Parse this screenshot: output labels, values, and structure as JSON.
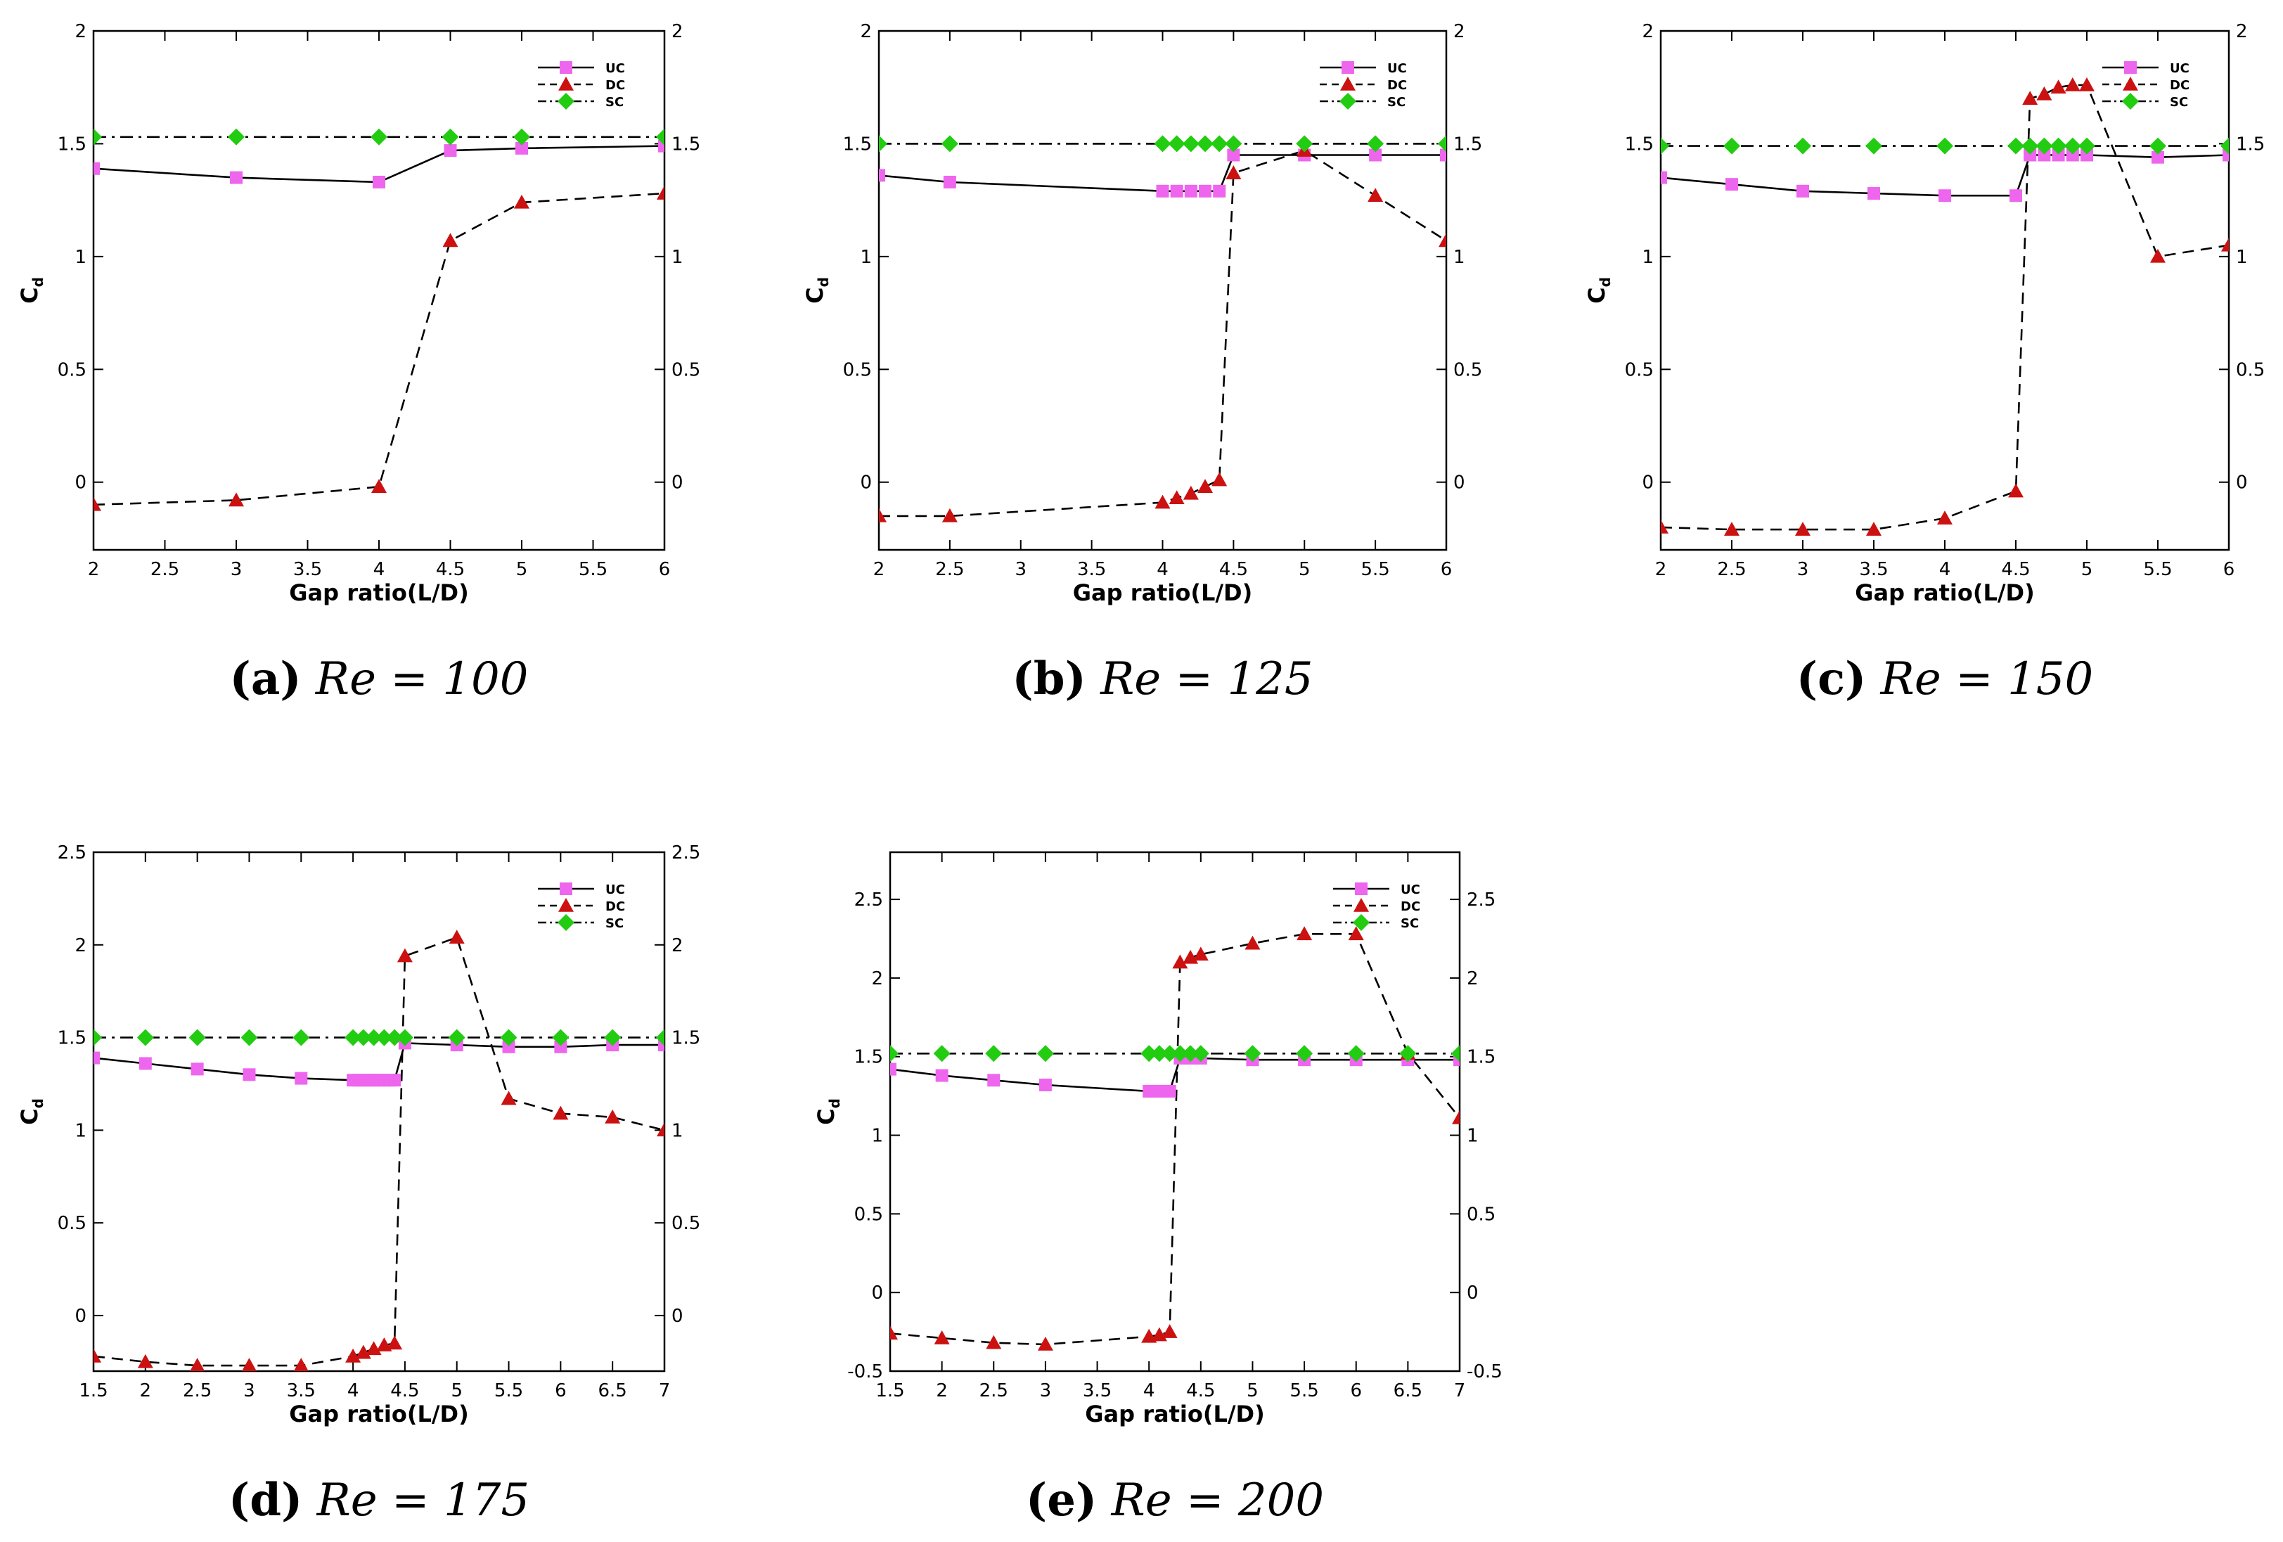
{
  "figure": {
    "colors": {
      "uc": "#ee66ee",
      "dc": "#cc1111",
      "sc": "#22cc11",
      "line": "#000000"
    }
  },
  "chart_data": [
    {
      "type": "line",
      "caption": {
        "letter": "(a)",
        "text": " Re = 100"
      },
      "xlabel": "Gap ratio(L/D)",
      "ylabel": "C",
      "ylabel_sub": "d",
      "xlim": [
        2,
        6
      ],
      "ylim": [
        -0.3,
        2
      ],
      "xticks": [
        2,
        2.5,
        3,
        3.5,
        4,
        4.5,
        5,
        5.5,
        6
      ],
      "xtick_labels": [
        "2",
        "2.5",
        "3",
        "3.5",
        "4",
        "4.5",
        "5",
        "5.5",
        "6"
      ],
      "yticks": [
        0,
        0.5,
        1,
        1.5,
        2
      ],
      "ytick_labels": [
        "0",
        "0.5",
        "1",
        "1.5",
        "2"
      ],
      "series": [
        {
          "name": "UC",
          "x": [
            2,
            3,
            4,
            4.5,
            5,
            6
          ],
          "y": [
            1.39,
            1.35,
            1.33,
            1.47,
            1.48,
            1.49
          ]
        },
        {
          "name": "DC",
          "x": [
            2,
            3,
            4,
            4.5,
            5,
            6
          ],
          "y": [
            -0.1,
            -0.08,
            -0.02,
            1.07,
            1.24,
            1.28
          ]
        },
        {
          "name": "SC",
          "x": [
            2,
            3,
            4,
            4.5,
            5,
            6
          ],
          "y": [
            1.53,
            1.53,
            1.53,
            1.53,
            1.53,
            1.53
          ]
        }
      ]
    },
    {
      "type": "line",
      "caption": {
        "letter": "(b)",
        "text": " Re = 125"
      },
      "xlabel": "Gap ratio(L/D)",
      "ylabel": "C",
      "ylabel_sub": "d",
      "xlim": [
        2,
        6
      ],
      "ylim": [
        -0.3,
        2
      ],
      "xticks": [
        2,
        2.5,
        3,
        3.5,
        4,
        4.5,
        5,
        5.5,
        6
      ],
      "xtick_labels": [
        "2",
        "2.5",
        "3",
        "3.5",
        "4",
        "4.5",
        "5",
        "5.5",
        "6"
      ],
      "yticks": [
        0,
        0.5,
        1,
        1.5,
        2
      ],
      "ytick_labels": [
        "0",
        "0.5",
        "1",
        "1.5",
        "2"
      ],
      "series": [
        {
          "name": "UC",
          "x": [
            2,
            2.5,
            4,
            4.1,
            4.2,
            4.3,
            4.4,
            4.5,
            5,
            5.5,
            6
          ],
          "y": [
            1.36,
            1.33,
            1.29,
            1.29,
            1.29,
            1.29,
            1.29,
            1.45,
            1.45,
            1.45,
            1.45
          ]
        },
        {
          "name": "DC",
          "x": [
            2,
            2.5,
            4,
            4.1,
            4.2,
            4.3,
            4.4,
            4.5,
            5,
            5.5,
            6
          ],
          "y": [
            -0.15,
            -0.15,
            -0.09,
            -0.07,
            -0.05,
            -0.02,
            0.01,
            1.37,
            1.47,
            1.27,
            1.07
          ]
        },
        {
          "name": "SC",
          "x": [
            2,
            2.5,
            4,
            4.1,
            4.2,
            4.3,
            4.4,
            4.5,
            5,
            5.5,
            6
          ],
          "y": [
            1.5,
            1.5,
            1.5,
            1.5,
            1.5,
            1.5,
            1.5,
            1.5,
            1.5,
            1.5,
            1.5
          ]
        }
      ]
    },
    {
      "type": "line",
      "caption": {
        "letter": "(c)",
        "text": " Re = 150"
      },
      "xlabel": "Gap ratio(L/D)",
      "ylabel": "C",
      "ylabel_sub": "d",
      "xlim": [
        2,
        6
      ],
      "ylim": [
        -0.3,
        2
      ],
      "xticks": [
        2,
        2.5,
        3,
        3.5,
        4,
        4.5,
        5,
        5.5,
        6
      ],
      "xtick_labels": [
        "2",
        "2.5",
        "3",
        "3.5",
        "4",
        "4.5",
        "5",
        "5.5",
        "6"
      ],
      "yticks": [
        0,
        0.5,
        1,
        1.5,
        2
      ],
      "ytick_labels": [
        "0",
        "0.5",
        "1",
        "1.5",
        "2"
      ],
      "series": [
        {
          "name": "UC",
          "x": [
            2,
            2.5,
            3,
            3.5,
            4,
            4.5,
            4.6,
            4.7,
            4.8,
            4.9,
            5,
            5.5,
            6
          ],
          "y": [
            1.35,
            1.32,
            1.29,
            1.28,
            1.27,
            1.27,
            1.45,
            1.45,
            1.45,
            1.45,
            1.45,
            1.44,
            1.45
          ]
        },
        {
          "name": "DC",
          "x": [
            2,
            2.5,
            3,
            3.5,
            4,
            4.5,
            4.6,
            4.7,
            4.8,
            4.9,
            5,
            5.5,
            6
          ],
          "y": [
            -0.2,
            -0.21,
            -0.21,
            -0.21,
            -0.16,
            -0.04,
            1.7,
            1.72,
            1.75,
            1.76,
            1.76,
            1.0,
            1.05
          ]
        },
        {
          "name": "SC",
          "x": [
            2,
            2.5,
            3,
            3.5,
            4,
            4.5,
            4.6,
            4.7,
            4.8,
            4.9,
            5,
            5.5,
            6
          ],
          "y": [
            1.49,
            1.49,
            1.49,
            1.49,
            1.49,
            1.49,
            1.49,
            1.49,
            1.49,
            1.49,
            1.49,
            1.49,
            1.49
          ]
        }
      ]
    },
    {
      "type": "line",
      "caption": {
        "letter": "(d)",
        "text": " Re = 175"
      },
      "xlabel": "Gap ratio(L/D)",
      "ylabel": "C",
      "ylabel_sub": "d",
      "xlim": [
        1.5,
        7
      ],
      "ylim": [
        -0.3,
        2.5
      ],
      "xticks": [
        1.5,
        2,
        2.5,
        3,
        3.5,
        4,
        4.5,
        5,
        5.5,
        6,
        6.5,
        7
      ],
      "xtick_labels": [
        "1.5",
        "2",
        "2.5",
        "3",
        "3.5",
        "4",
        "4.5",
        "5",
        "5.5",
        "6",
        "6.5",
        "7"
      ],
      "yticks": [
        0,
        0.5,
        1,
        1.5,
        2,
        2.5
      ],
      "ytick_labels": [
        "0",
        "0.5",
        "1",
        "1.5",
        "2",
        "2.5"
      ],
      "series": [
        {
          "name": "UC",
          "x": [
            1.5,
            2,
            2.5,
            3,
            3.5,
            4,
            4.05,
            4.1,
            4.15,
            4.2,
            4.25,
            4.3,
            4.35,
            4.4,
            4.5,
            5,
            5.5,
            6,
            6.5,
            7
          ],
          "y": [
            1.39,
            1.36,
            1.33,
            1.3,
            1.28,
            1.27,
            1.27,
            1.27,
            1.27,
            1.27,
            1.27,
            1.27,
            1.27,
            1.27,
            1.47,
            1.46,
            1.45,
            1.45,
            1.46,
            1.46
          ]
        },
        {
          "name": "DC",
          "x": [
            1.5,
            2,
            2.5,
            3,
            3.5,
            4,
            4.1,
            4.2,
            4.3,
            4.4,
            4.5,
            5,
            5.5,
            6,
            6.5,
            7
          ],
          "y": [
            -0.22,
            -0.25,
            -0.27,
            -0.27,
            -0.27,
            -0.22,
            -0.2,
            -0.18,
            -0.16,
            -0.15,
            1.94,
            2.04,
            1.17,
            1.09,
            1.07,
            1.0
          ]
        },
        {
          "name": "SC",
          "x": [
            1.5,
            2,
            2.5,
            3,
            3.5,
            4,
            4.1,
            4.2,
            4.3,
            4.4,
            4.5,
            5,
            5.5,
            6,
            6.5,
            7
          ],
          "y": [
            1.5,
            1.5,
            1.5,
            1.5,
            1.5,
            1.5,
            1.5,
            1.5,
            1.5,
            1.5,
            1.5,
            1.5,
            1.5,
            1.5,
            1.5,
            1.5
          ]
        }
      ]
    },
    {
      "type": "line",
      "caption": {
        "letter": "(e)",
        "text": " Re = 200"
      },
      "xlabel": "Gap ratio(L/D)",
      "ylabel": "C",
      "ylabel_sub": "d",
      "xlim": [
        1.5,
        7
      ],
      "ylim": [
        -0.5,
        2.8
      ],
      "xticks": [
        1.5,
        2,
        2.5,
        3,
        3.5,
        4,
        4.5,
        5,
        5.5,
        6,
        6.5,
        7
      ],
      "xtick_labels": [
        "1.5",
        "2",
        "2.5",
        "3",
        "3.5",
        "4",
        "4.5",
        "5",
        "5.5",
        "6",
        "6.5",
        "7"
      ],
      "yticks": [
        -0.5,
        0,
        0.5,
        1,
        1.5,
        2,
        2.5
      ],
      "ytick_labels": [
        "-0.5",
        "0",
        "0.5",
        "1",
        "1.5",
        "2",
        "2.5"
      ],
      "series": [
        {
          "name": "UC",
          "x": [
            1.5,
            2,
            2.5,
            3,
            4,
            4.05,
            4.1,
            4.15,
            4.2,
            4.3,
            4.4,
            4.5,
            5,
            5.5,
            6,
            6.5,
            7
          ],
          "y": [
            1.42,
            1.38,
            1.35,
            1.32,
            1.28,
            1.28,
            1.28,
            1.28,
            1.28,
            1.49,
            1.49,
            1.49,
            1.48,
            1.48,
            1.48,
            1.48,
            1.48
          ]
        },
        {
          "name": "DC",
          "x": [
            1.5,
            2,
            2.5,
            3,
            4,
            4.1,
            4.2,
            4.3,
            4.4,
            4.5,
            5,
            5.5,
            6,
            6.5,
            7
          ],
          "y": [
            -0.26,
            -0.29,
            -0.32,
            -0.33,
            -0.28,
            -0.27,
            -0.25,
            2.1,
            2.13,
            2.15,
            2.22,
            2.28,
            2.28,
            1.52,
            1.11
          ]
        },
        {
          "name": "SC",
          "x": [
            1.5,
            2,
            2.5,
            3,
            4,
            4.1,
            4.2,
            4.3,
            4.4,
            4.5,
            5,
            5.5,
            6,
            6.5,
            7
          ],
          "y": [
            1.52,
            1.52,
            1.52,
            1.52,
            1.52,
            1.52,
            1.52,
            1.52,
            1.52,
            1.52,
            1.52,
            1.52,
            1.52,
            1.52,
            1.52
          ]
        }
      ]
    }
  ]
}
